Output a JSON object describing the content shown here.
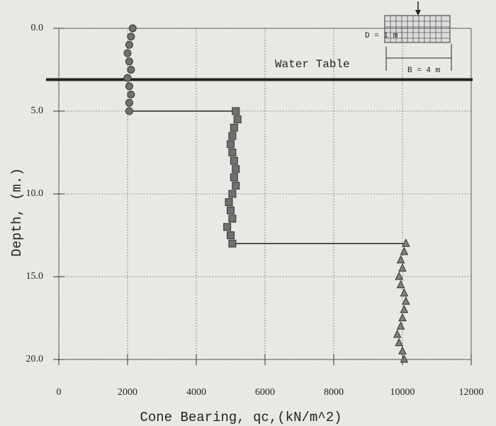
{
  "chart_data": {
    "type": "scatter",
    "x_label": "Cone Bearing, qc,(kN/m^2)",
    "y_label": "Depth, (m.)",
    "xlim": [
      0,
      12000
    ],
    "xticks": [
      0,
      2000,
      4000,
      6000,
      8000,
      10000,
      12000
    ],
    "ylim": [
      0,
      20
    ],
    "y_inverted": true,
    "yticks": [
      {
        "value": 0,
        "label": "0.0"
      },
      {
        "value": 5,
        "label": "5.0"
      },
      {
        "value": 10,
        "label": "10.0"
      },
      {
        "value": 15,
        "label": "15.0"
      },
      {
        "value": 20,
        "label": "20.0"
      }
    ],
    "grid": true,
    "water_table": {
      "label": "Water Table",
      "depth": 3.1
    },
    "footing": {
      "depth_label": "D = 1 m",
      "width_label": "B = 4 m"
    },
    "series": [
      {
        "marker": "circle",
        "color": "#707070",
        "x": [
          2150,
          2100,
          2050,
          2000,
          2050,
          2100,
          2000,
          2050,
          2100,
          2050,
          2050
        ],
        "values": [
          0,
          0.5,
          1,
          1.5,
          2,
          2.5,
          3,
          3.5,
          4,
          4.5,
          5
        ]
      },
      {
        "marker": "square",
        "color": "#707070",
        "x": [
          5150,
          5200,
          5100,
          5050,
          5000,
          5050,
          5100,
          5150,
          5100,
          5150,
          5050,
          4950,
          5000,
          5050,
          4900,
          5000,
          5050
        ],
        "values": [
          5,
          5.5,
          6,
          6.5,
          7,
          7.5,
          8,
          8.5,
          9,
          9.5,
          10,
          10.5,
          11,
          11.5,
          12,
          12.5,
          13
        ]
      },
      {
        "marker": "triangle",
        "color": "#808080",
        "x": [
          10100,
          10050,
          9950,
          10000,
          9900,
          9950,
          10050,
          10100,
          10050,
          10000,
          9950,
          9850,
          9900,
          10000,
          10050
        ],
        "values": [
          13,
          13.5,
          14,
          14.5,
          15,
          15.5,
          16,
          16.5,
          17,
          17.5,
          18,
          18.5,
          19,
          19.5,
          20
        ]
      }
    ]
  }
}
